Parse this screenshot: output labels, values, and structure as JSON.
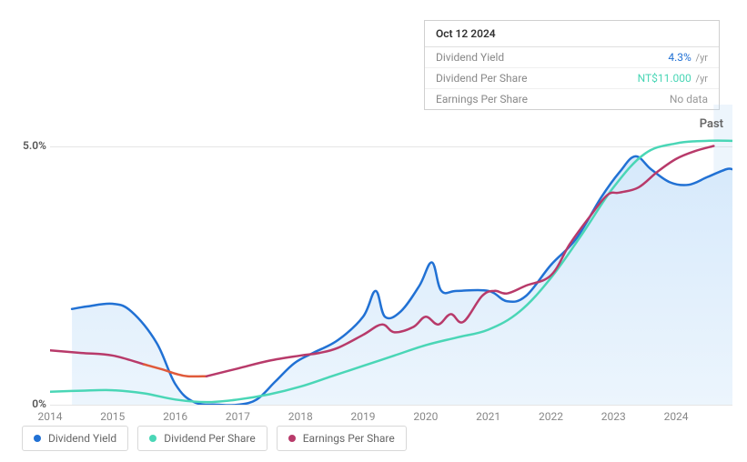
{
  "tooltip": {
    "date": "Oct 12 2024",
    "rows": [
      {
        "label": "Dividend Yield",
        "value": "4.3%",
        "unit": "/yr",
        "color": "#2171d4"
      },
      {
        "label": "Dividend Per Share",
        "value": "NT$11.000",
        "unit": "/yr",
        "color": "#4ad6b6"
      },
      {
        "label": "Earnings Per Share",
        "value": "No data",
        "unit": "",
        "color": "#999999"
      }
    ]
  },
  "chart": {
    "type": "line-area",
    "background_color": "#ffffff",
    "grid_color": "#e5e5e5",
    "xlim": [
      2014,
      2024.9
    ],
    "ylim": [
      0,
      5.8
    ],
    "ytick_labels": [
      {
        "v": 0,
        "label": "0%"
      },
      {
        "v": 5.0,
        "label": "5.0%"
      }
    ],
    "xtick_labels": [
      2014,
      2015,
      2016,
      2017,
      2018,
      2019,
      2020,
      2021,
      2022,
      2023,
      2024
    ],
    "past_label": "Past",
    "label_fontsize": 12,
    "series": [
      {
        "name": "Dividend Yield",
        "color": "#2171d4",
        "fill": true,
        "fill_color_top": "#d6e9fb",
        "fill_color_bottom": "#ecf5fd",
        "line_width": 2.5,
        "data": [
          [
            2014.35,
            1.85
          ],
          [
            2014.6,
            1.9
          ],
          [
            2015.0,
            1.95
          ],
          [
            2015.3,
            1.8
          ],
          [
            2015.7,
            1.2
          ],
          [
            2016.0,
            0.4
          ],
          [
            2016.3,
            0.05
          ],
          [
            2016.7,
            0
          ],
          [
            2017.0,
            0
          ],
          [
            2017.3,
            0.1
          ],
          [
            2017.6,
            0.45
          ],
          [
            2017.9,
            0.8
          ],
          [
            2018.2,
            1.0
          ],
          [
            2018.6,
            1.25
          ],
          [
            2019.0,
            1.7
          ],
          [
            2019.2,
            2.2
          ],
          [
            2019.35,
            1.7
          ],
          [
            2019.6,
            1.8
          ],
          [
            2019.9,
            2.3
          ],
          [
            2020.1,
            2.75
          ],
          [
            2020.25,
            2.2
          ],
          [
            2020.5,
            2.2
          ],
          [
            2021.0,
            2.2
          ],
          [
            2021.3,
            2.0
          ],
          [
            2021.6,
            2.1
          ],
          [
            2022.0,
            2.7
          ],
          [
            2022.4,
            3.2
          ],
          [
            2022.8,
            4.0
          ],
          [
            2023.1,
            4.5
          ],
          [
            2023.35,
            4.8
          ],
          [
            2023.6,
            4.55
          ],
          [
            2023.9,
            4.3
          ],
          [
            2024.2,
            4.25
          ],
          [
            2024.5,
            4.4
          ],
          [
            2024.8,
            4.55
          ],
          [
            2024.9,
            4.55
          ]
        ]
      },
      {
        "name": "Dividend Per Share",
        "color": "#4ad6b6",
        "fill": false,
        "line_width": 2.5,
        "data": [
          [
            2014.0,
            0.25
          ],
          [
            2014.5,
            0.27
          ],
          [
            2015.0,
            0.28
          ],
          [
            2015.5,
            0.22
          ],
          [
            2016.0,
            0.1
          ],
          [
            2016.5,
            0.05
          ],
          [
            2017.0,
            0.1
          ],
          [
            2017.5,
            0.2
          ],
          [
            2018.0,
            0.35
          ],
          [
            2018.5,
            0.55
          ],
          [
            2019.0,
            0.75
          ],
          [
            2019.5,
            0.95
          ],
          [
            2020.0,
            1.15
          ],
          [
            2020.5,
            1.3
          ],
          [
            2021.0,
            1.45
          ],
          [
            2021.5,
            1.8
          ],
          [
            2022.0,
            2.45
          ],
          [
            2022.5,
            3.3
          ],
          [
            2023.0,
            4.2
          ],
          [
            2023.5,
            4.85
          ],
          [
            2024.0,
            5.05
          ],
          [
            2024.5,
            5.1
          ],
          [
            2024.9,
            5.1
          ]
        ]
      },
      {
        "name": "Earnings Per Share",
        "color": "#b83a6a",
        "fill": false,
        "line_width": 2.5,
        "data": [
          [
            2014.0,
            1.05
          ],
          [
            2014.5,
            1.0
          ],
          [
            2015.0,
            0.95
          ],
          [
            2015.5,
            0.78
          ],
          [
            2015.8,
            0.68
          ],
          [
            2016.0,
            0.6
          ],
          [
            2016.2,
            0.55
          ],
          [
            2016.5,
            0.55
          ],
          [
            2017.0,
            0.7
          ],
          [
            2017.5,
            0.85
          ],
          [
            2018.0,
            0.95
          ],
          [
            2018.3,
            1.0
          ],
          [
            2018.6,
            1.1
          ],
          [
            2019.0,
            1.35
          ],
          [
            2019.3,
            1.55
          ],
          [
            2019.5,
            1.4
          ],
          [
            2019.8,
            1.5
          ],
          [
            2020.0,
            1.7
          ],
          [
            2020.2,
            1.55
          ],
          [
            2020.4,
            1.75
          ],
          [
            2020.6,
            1.6
          ],
          [
            2020.9,
            2.1
          ],
          [
            2021.1,
            2.2
          ],
          [
            2021.3,
            2.15
          ],
          [
            2021.6,
            2.3
          ],
          [
            2022.0,
            2.5
          ],
          [
            2022.3,
            3.1
          ],
          [
            2022.6,
            3.6
          ],
          [
            2022.9,
            4.05
          ],
          [
            2023.1,
            4.1
          ],
          [
            2023.4,
            4.2
          ],
          [
            2023.7,
            4.5
          ],
          [
            2024.0,
            4.75
          ],
          [
            2024.3,
            4.9
          ],
          [
            2024.6,
            5.0
          ]
        ],
        "alt_color": "#e05a3a",
        "alt_range": [
          2015.5,
          2016.5
        ]
      }
    ]
  },
  "legend": {
    "items": [
      {
        "label": "Dividend Yield",
        "color": "#2171d4"
      },
      {
        "label": "Dividend Per Share",
        "color": "#4ad6b6"
      },
      {
        "label": "Earnings Per Share",
        "color": "#b83a6a"
      }
    ]
  }
}
